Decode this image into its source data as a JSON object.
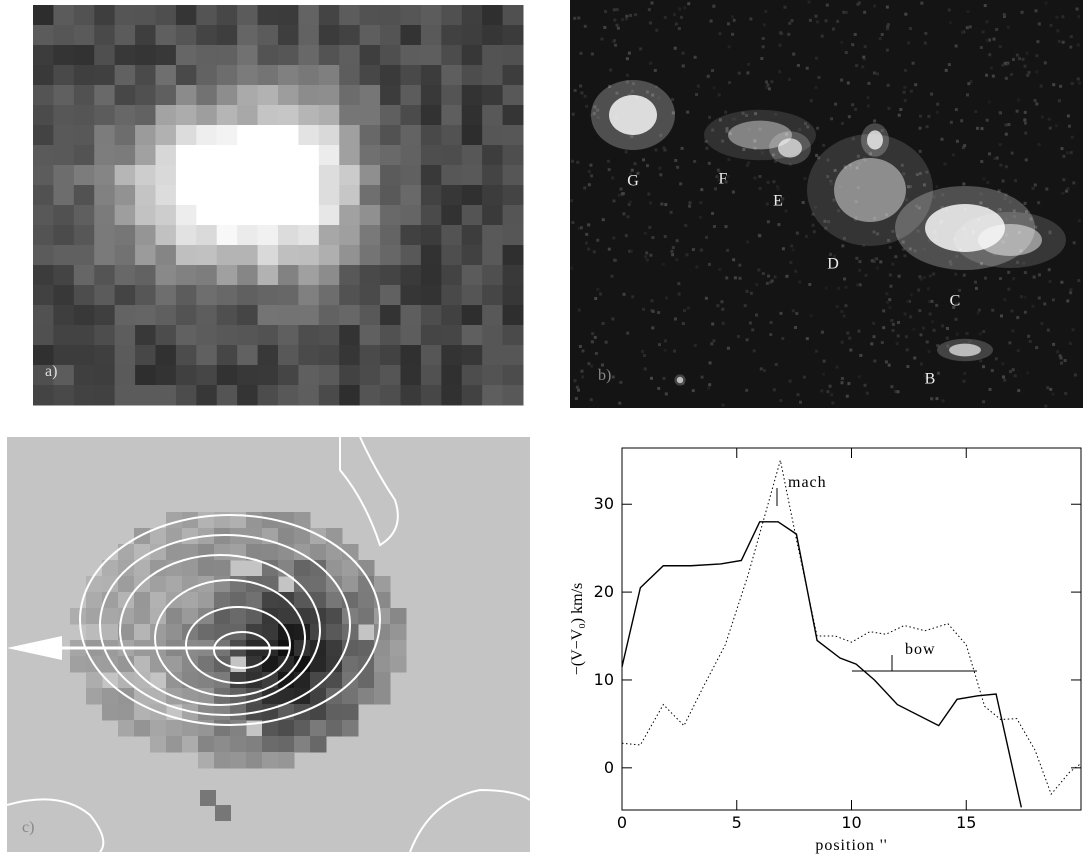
{
  "panels": [
    {
      "label": "a)"
    },
    {
      "label": "b)",
      "knots": [
        "G",
        "F",
        "E",
        "D",
        "C",
        "B"
      ]
    },
    {
      "label": "c)"
    }
  ],
  "chart_data": {
    "type": "line",
    "x_label": "position ''",
    "y_label": "−(V−V₀)  km/s",
    "annotations": [
      "mach",
      "bow"
    ],
    "xlim": [
      0,
      20
    ],
    "ylim": [
      -4.8,
      36.4
    ],
    "xticks": [
      0,
      5,
      10,
      15
    ],
    "yticks": [
      0,
      10,
      20,
      30
    ],
    "series": [
      {
        "style": "solid",
        "color": "#000000",
        "x": [
          0,
          0.8,
          1.8,
          3,
          4.3,
          5.2,
          6,
          6.8,
          7.6,
          8.5,
          9.5,
          10.2,
          11,
          12,
          13.8,
          14.6,
          15.5,
          16.3,
          17.1,
          17.4
        ],
        "values": [
          11.5,
          20.5,
          23,
          23,
          23.2,
          23.6,
          28,
          28,
          26.6,
          14.5,
          12.5,
          11.8,
          10,
          7.2,
          4.8,
          7.8,
          8.2,
          8.4,
          -1,
          -4.5
        ]
      },
      {
        "style": "dotted",
        "color": "#000000",
        "x": [
          0,
          0.8,
          1.8,
          2.7,
          3.5,
          4.5,
          5.5,
          6.2,
          6.9,
          7.6,
          8.5,
          9.3,
          10,
          10.8,
          11.5,
          12.3,
          13.2,
          14.2,
          15,
          15.8,
          16.5,
          17.2,
          18,
          18.7,
          19.5,
          20
        ],
        "values": [
          2.8,
          2.6,
          7.2,
          4.8,
          9,
          14,
          22,
          28.5,
          35,
          26,
          15,
          15,
          14.3,
          15.5,
          15.2,
          16.2,
          15.6,
          16.4,
          14,
          7,
          5.5,
          5.6,
          2,
          -3,
          -0.5,
          0.5
        ]
      }
    ]
  }
}
